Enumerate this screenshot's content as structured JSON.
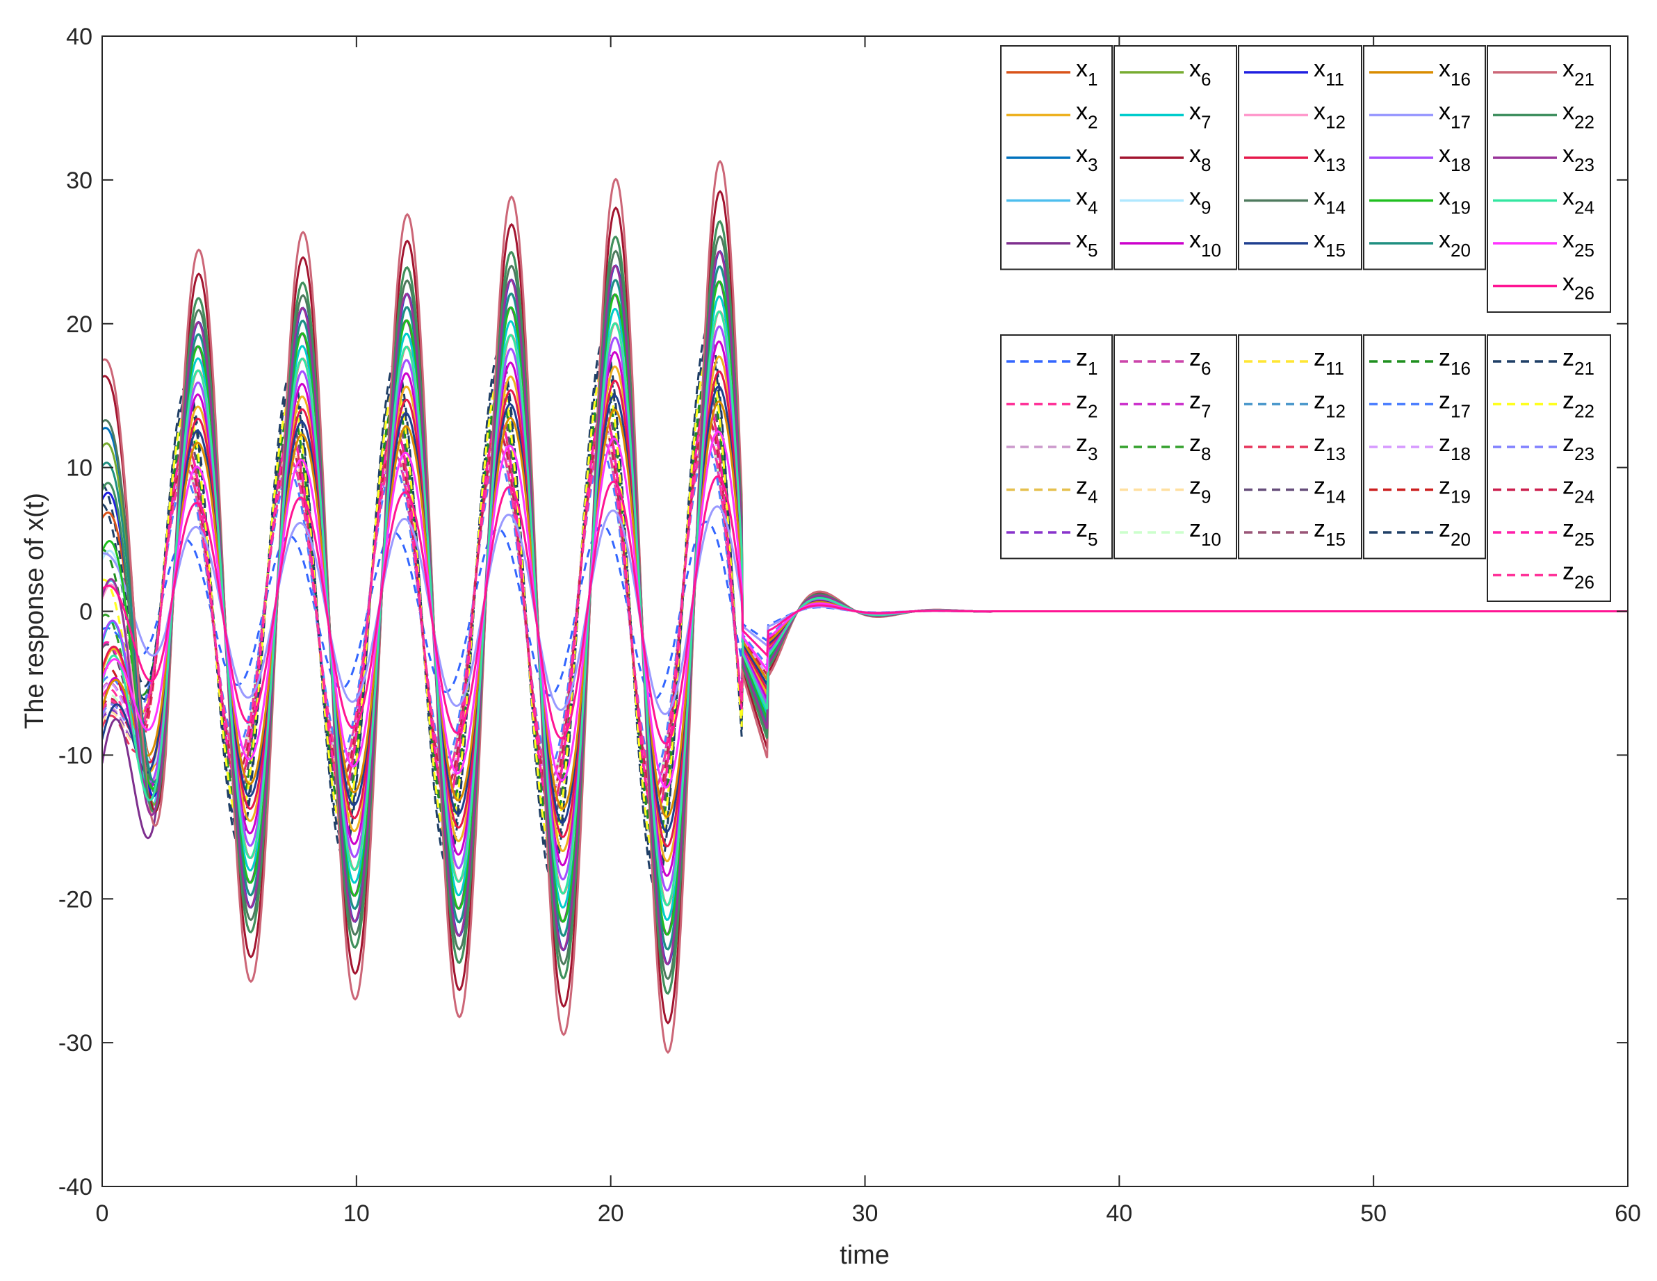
{
  "chart_data": {
    "type": "line",
    "xlabel": "time",
    "ylabel": "The response of x(t)",
    "xlim": [
      0,
      60
    ],
    "ylim": [
      -40,
      40
    ],
    "xticks": [
      0,
      10,
      20,
      30,
      40,
      50,
      60
    ],
    "yticks": [
      -40,
      -30,
      -20,
      -10,
      0,
      10,
      20,
      30,
      40
    ],
    "grid": false,
    "legend_placement": "top-right",
    "x_series": [
      {
        "name": "x1",
        "color": "#D95319",
        "amp": 20,
        "phase": 0.2
      },
      {
        "name": "x2",
        "color": "#EDB120",
        "amp": 17,
        "phase": 0.4
      },
      {
        "name": "x3",
        "color": "#0072BD",
        "amp": 24,
        "phase": 0.1
      },
      {
        "name": "x4",
        "color": "#4DBEEE",
        "amp": 23,
        "phase": 0.3
      },
      {
        "name": "x5",
        "color": "#7E2F8E",
        "amp": 22,
        "phase": 0.5
      },
      {
        "name": "x6",
        "color": "#77AC30",
        "amp": 26,
        "phase": 0.15
      },
      {
        "name": "x7",
        "color": "#00CCCC",
        "amp": 21,
        "phase": 0.35
      },
      {
        "name": "x8",
        "color": "#A2142F",
        "amp": 28,
        "phase": 0.05
      },
      {
        "name": "x9",
        "color": "#B0E8FF",
        "amp": 19,
        "phase": 0.25
      },
      {
        "name": "x10",
        "color": "#CC00CC",
        "amp": 18,
        "phase": 0.45
      },
      {
        "name": "x11",
        "color": "#1F1FE0",
        "amp": 24,
        "phase": 0.2
      },
      {
        "name": "x12",
        "color": "#FF99CC",
        "amp": 20,
        "phase": 0.3
      },
      {
        "name": "x13",
        "color": "#E6194B",
        "amp": 16,
        "phase": 0.4
      },
      {
        "name": "x14",
        "color": "#4E7A5E",
        "amp": 25,
        "phase": 0.1
      },
      {
        "name": "x15",
        "color": "#1F3F8F",
        "amp": 15,
        "phase": 0.6
      },
      {
        "name": "x16",
        "color": "#D98C00",
        "amp": 14,
        "phase": 0.5
      },
      {
        "name": "x17",
        "color": "#9999FF",
        "amp": 7,
        "phase": 1.2
      },
      {
        "name": "x18",
        "color": "#A64DFF",
        "amp": 19,
        "phase": 0.35
      },
      {
        "name": "x19",
        "color": "#1FBF1F",
        "amp": 22,
        "phase": 0.25
      },
      {
        "name": "x20",
        "color": "#1F8F80",
        "amp": 23,
        "phase": 0.15
      },
      {
        "name": "x21",
        "color": "#CC6677",
        "amp": 30,
        "phase": 0.05
      },
      {
        "name": "x22",
        "color": "#3F8F5F",
        "amp": 26,
        "phase": 0.2
      },
      {
        "name": "x23",
        "color": "#993399",
        "amp": 24,
        "phase": 0.3
      },
      {
        "name": "x24",
        "color": "#33E6A0",
        "amp": 20,
        "phase": 0.4
      },
      {
        "name": "x25",
        "color": "#FF33FF",
        "amp": 12,
        "phase": 0.8
      },
      {
        "name": "x26",
        "color": "#FF1493",
        "amp": 9,
        "phase": 1.0
      }
    ],
    "z_series": [
      {
        "name": "z1",
        "color": "#3366FF",
        "amp": 6,
        "phase": 1.5
      },
      {
        "name": "z2",
        "color": "#FF3399",
        "amp": 14,
        "phase": 1.1
      },
      {
        "name": "z3",
        "color": "#CC99CC",
        "amp": 13,
        "phase": 1.2
      },
      {
        "name": "z4",
        "color": "#E6C04D",
        "amp": 15,
        "phase": 1.0
      },
      {
        "name": "z5",
        "color": "#8833CC",
        "amp": 13,
        "phase": 1.3
      },
      {
        "name": "z6",
        "color": "#CC44AA",
        "amp": 12,
        "phase": 1.4
      },
      {
        "name": "z7",
        "color": "#CC33CC",
        "amp": 14,
        "phase": 1.05
      },
      {
        "name": "z8",
        "color": "#33A02C",
        "amp": 16,
        "phase": 0.95
      },
      {
        "name": "z9",
        "color": "#FFE0A0",
        "amp": 13,
        "phase": 1.25
      },
      {
        "name": "z10",
        "color": "#CCFFCC",
        "amp": 12,
        "phase": 1.35
      },
      {
        "name": "z11",
        "color": "#FFE633",
        "amp": 17,
        "phase": 0.9
      },
      {
        "name": "z12",
        "color": "#4D99CC",
        "amp": 13,
        "phase": 1.15
      },
      {
        "name": "z13",
        "color": "#E6335A",
        "amp": 14,
        "phase": 1.2
      },
      {
        "name": "z14",
        "color": "#664D7A",
        "amp": 15,
        "phase": 1.0
      },
      {
        "name": "z15",
        "color": "#995577",
        "amp": 12,
        "phase": 1.3
      },
      {
        "name": "z16",
        "color": "#1F8F1F",
        "amp": 16,
        "phase": 0.85
      },
      {
        "name": "z17",
        "color": "#4D80FF",
        "amp": 11,
        "phase": 1.4
      },
      {
        "name": "z18",
        "color": "#D699FF",
        "amp": 13,
        "phase": 1.1
      },
      {
        "name": "z19",
        "color": "#CC1F1F",
        "amp": 14,
        "phase": 1.05
      },
      {
        "name": "z20",
        "color": "#1F3F66",
        "amp": 19,
        "phase": 0.8
      },
      {
        "name": "z21",
        "color": "#1F3F66",
        "amp": 18,
        "phase": 0.75
      },
      {
        "name": "z22",
        "color": "#FFFF1F",
        "amp": 17,
        "phase": 0.9
      },
      {
        "name": "z23",
        "color": "#8080FF",
        "amp": 12,
        "phase": 1.25
      },
      {
        "name": "z24",
        "color": "#CC1F4D",
        "amp": 13,
        "phase": 1.15
      },
      {
        "name": "z25",
        "color": "#FF1FAA",
        "amp": 14,
        "phase": 1.0
      },
      {
        "name": "z26",
        "color": "#FF3399",
        "amp": 12,
        "phase": 1.2
      }
    ]
  }
}
